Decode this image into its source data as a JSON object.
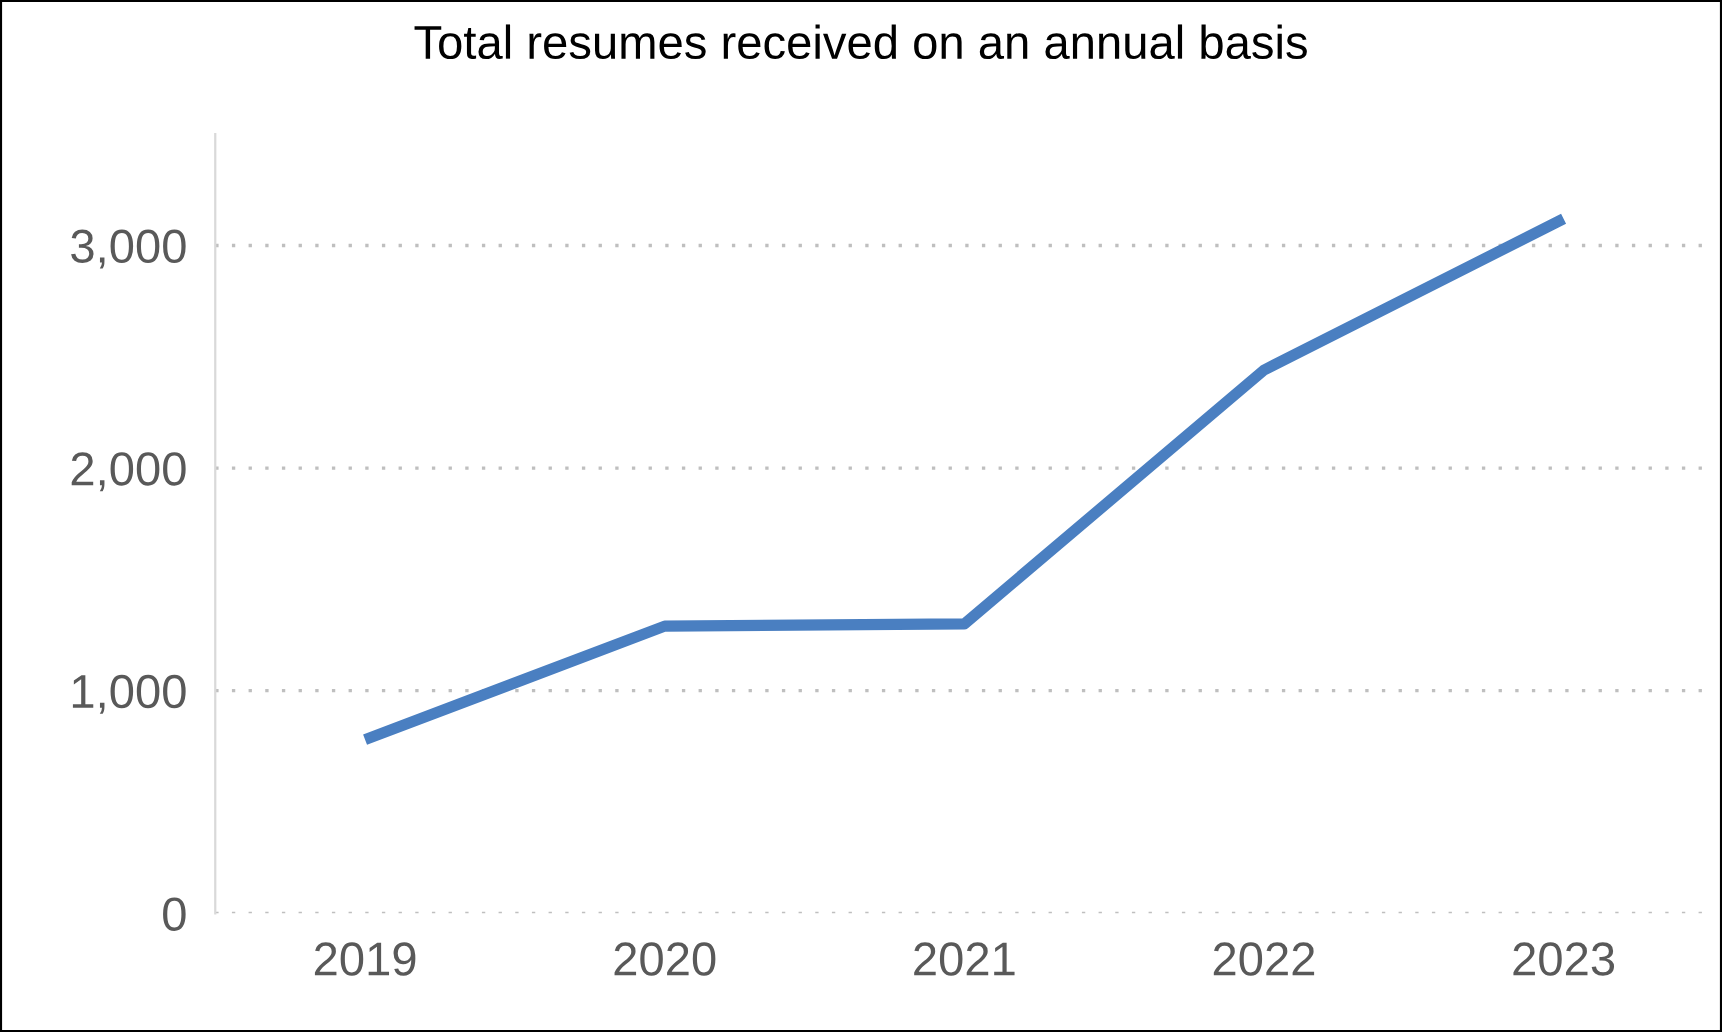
{
  "chart_data": {
    "type": "line",
    "title": "Total resumes received on an annual basis",
    "categories": [
      "2019",
      "2020",
      "2021",
      "2022",
      "2023"
    ],
    "series": [
      {
        "color": "#4a7fc1",
        "values": [
          780,
          1290,
          1300,
          2440,
          3120
        ]
      }
    ],
    "ylim": [
      0,
      3500
    ],
    "yticks": [
      {
        "value": 0,
        "label": "0"
      },
      {
        "value": 1000,
        "label": "1,000"
      },
      {
        "value": 2000,
        "label": "2,000"
      },
      {
        "value": 3000,
        "label": "3,000"
      }
    ],
    "grid": "y",
    "line_style": "solid",
    "marker": "none"
  }
}
